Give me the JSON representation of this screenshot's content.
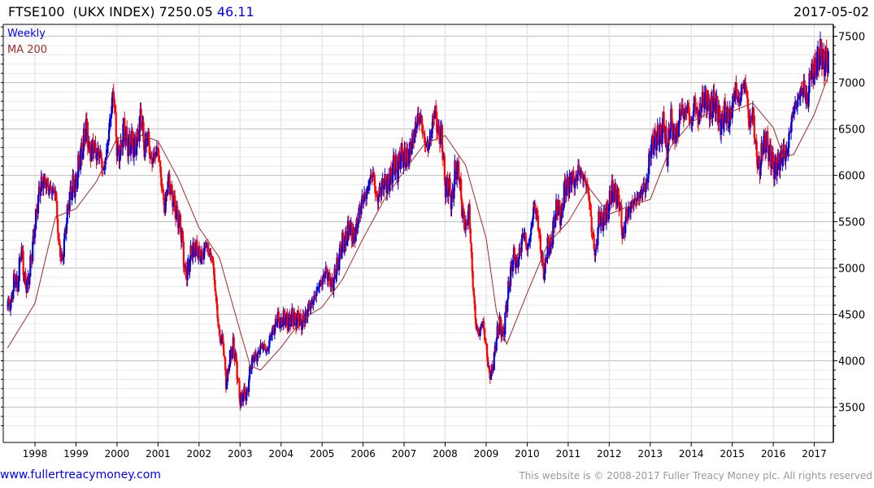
{
  "header": {
    "symbol": "FTSE100",
    "name": "(UKX INDEX)",
    "last": "7250.05",
    "change": "46.11",
    "date": "2017-05-02"
  },
  "footer": {
    "site": "www.fullertreacymoney.com",
    "copyright": "This website is © 2008-2017 Fuller Treacy Money plc. All rights reserved"
  },
  "colors": {
    "up": "#0000dd",
    "down": "#ff0000",
    "ma": "#a52a2a",
    "legend_weekly": "#0000ff"
  },
  "chart_data": {
    "type": "bar",
    "title": "FTSE100 (UKX INDEX) weekly",
    "legend": [
      "Weekly",
      "MA 200"
    ],
    "legend_placement": "top-left",
    "xlabel": "",
    "ylabel": "",
    "xlim": [
      1997.33,
      2017.34
    ],
    "ylim": [
      3200,
      7700
    ],
    "yticks": [
      3500,
      4000,
      4500,
      5000,
      5500,
      6000,
      6500,
      7000,
      7500
    ],
    "xticks": [
      "1998",
      "1999",
      "2000",
      "2001",
      "2002",
      "2003",
      "2004",
      "2005",
      "2006",
      "2007",
      "2008",
      "2009",
      "2010",
      "2011",
      "2012",
      "2013",
      "2014",
      "2015",
      "2016",
      "2017"
    ],
    "grid": true,
    "series_start": 1997.33,
    "monthly_close": [
      4621,
      4604,
      4907,
      4817,
      5244,
      4842,
      4831,
      5136,
      5458,
      5767,
      5932,
      5928,
      5870,
      5833,
      5837,
      5249,
      5064,
      5438,
      5744,
      5883,
      5896,
      6175,
      6296,
      6553,
      6226,
      6319,
      6231,
      6246,
      6030,
      6255,
      6597,
      6930,
      6269,
      6233,
      6540,
      6327,
      6359,
      6313,
      6365,
      6673,
      6294,
      6438,
      6142,
      6223,
      6298,
      5918,
      5634,
      5967,
      5796,
      5643,
      5529,
      5345,
      4903,
      5040,
      5204,
      5217,
      5165,
      5102,
      5272,
      5166,
      5086,
      4656,
      4246,
      4227,
      3722,
      4040,
      4170,
      3940,
      3567,
      3656,
      3613,
      3926,
      4048,
      4031,
      4157,
      4161,
      4091,
      4288,
      4342,
      4477,
      4390,
      4492,
      4386,
      4489,
      4431,
      4464,
      4413,
      4459,
      4571,
      4624,
      4703,
      4814,
      4852,
      4969,
      4894,
      4801,
      4964,
      5113,
      5282,
      5297,
      5478,
      5317,
      5423,
      5619,
      5760,
      5792,
      5965,
      6023,
      5724,
      5833,
      5928,
      5906,
      5961,
      6129,
      6049,
      6221,
      6203,
      6172,
      6308,
      6449,
      6621,
      6608,
      6360,
      6303,
      6467,
      6722,
      6432,
      6457,
      5880,
      5884,
      5702,
      6087,
      6053,
      5626,
      5412,
      5637,
      4902,
      4377,
      4288,
      4434,
      4150,
      3830,
      3926,
      4244,
      4418,
      4249,
      4608,
      4909,
      5134,
      5045,
      5191,
      5413,
      5189,
      5355,
      5680,
      5553,
      5188,
      4917,
      5258,
      5225,
      5549,
      5675,
      5528,
      5900,
      5863,
      5994,
      5909,
      6070,
      5990,
      5946,
      5815,
      5395,
      5128,
      5544,
      5505,
      5572,
      5682,
      5872,
      5768,
      5738,
      5321,
      5571,
      5635,
      5711,
      5742,
      5783,
      5867,
      5898,
      6277,
      6361,
      6412,
      6430,
      6583,
      6215,
      6621,
      6413,
      6462,
      6731,
      6651,
      6749,
      6510,
      6810,
      6598,
      6780,
      6845,
      6744,
      6730,
      6820,
      6623,
      6546,
      6723,
      6566,
      6749,
      6947,
      6773,
      6961,
      6984,
      6521,
      6696,
      6248,
      6062,
      6361,
      6356,
      6242,
      6084,
      6097,
      6175,
      6242,
      6231,
      6504,
      6724,
      6782,
      6899,
      6954,
      6784,
      7143,
      7099,
      7263,
      7323,
      7204,
      7250
    ],
    "ma200": [
      [
        1997.33,
        4137
      ],
      [
        1998.0,
        4620
      ],
      [
        1998.5,
        5550
      ],
      [
        1999.0,
        5640
      ],
      [
        1999.5,
        5935
      ],
      [
        2000.0,
        6400
      ],
      [
        2000.5,
        6445
      ],
      [
        2001.0,
        6370
      ],
      [
        2001.5,
        5960
      ],
      [
        2002.0,
        5435
      ],
      [
        2002.5,
        5110
      ],
      [
        2003.0,
        4320
      ],
      [
        2003.25,
        3945
      ],
      [
        2003.5,
        3900
      ],
      [
        2004.0,
        4145
      ],
      [
        2004.5,
        4440
      ],
      [
        2005.0,
        4580
      ],
      [
        2005.5,
        4880
      ],
      [
        2006.0,
        5320
      ],
      [
        2006.5,
        5725
      ],
      [
        2007.0,
        6050
      ],
      [
        2007.5,
        6340
      ],
      [
        2008.0,
        6430
      ],
      [
        2008.5,
        6110
      ],
      [
        2009.0,
        5320
      ],
      [
        2009.25,
        4530
      ],
      [
        2009.5,
        4180
      ],
      [
        2010.0,
        4730
      ],
      [
        2010.5,
        5260
      ],
      [
        2011.0,
        5500
      ],
      [
        2011.5,
        5870
      ],
      [
        2012.0,
        5580
      ],
      [
        2012.5,
        5670
      ],
      [
        2013.0,
        5740
      ],
      [
        2013.5,
        6310
      ],
      [
        2014.0,
        6575
      ],
      [
        2014.5,
        6690
      ],
      [
        2015.0,
        6690
      ],
      [
        2015.5,
        6780
      ],
      [
        2016.0,
        6515
      ],
      [
        2016.25,
        6200
      ],
      [
        2016.5,
        6225
      ],
      [
        2017.0,
        6660
      ],
      [
        2017.33,
        7060
      ]
    ]
  }
}
